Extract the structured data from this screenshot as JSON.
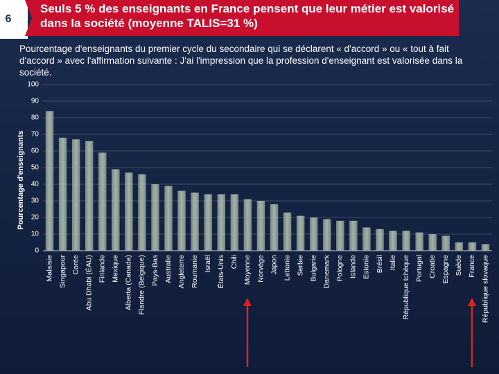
{
  "slide_number": "6",
  "chart_data": {
    "type": "bar",
    "title": "Seuls 5 % des enseignants en France pensent que leur métier est valorisé dans la société (moyenne TALIS=31 %)",
    "subtitle": "Pourcentage d'enseignants du premier cycle du secondaire qui se déclarent « d'accord » ou « tout à fait d'accord » avec l'affirmation suivante : J'ai l'impression que la profession d'enseignant est valorisée dans la société.",
    "y_label": "Pourcentage d'enseignants",
    "categories": [
      "Malaisie",
      "Singapour",
      "Corée",
      "Abu Dhabi (ÉAU)",
      "Finlande",
      "Mexique",
      "Alberta (Canada)",
      "Flandre (Belgique)",
      "Pays-Bas",
      "Australie",
      "Angleterre",
      "Roumanie",
      "Israël",
      "États-Unis",
      "Chili",
      "Moyenne",
      "Norvège",
      "Japon",
      "Lettonie",
      "Serbie",
      "Bulgarie",
      "Danemark",
      "Pologne",
      "Islande",
      "Estonie",
      "Brésil",
      "Italie",
      "République tchèque",
      "Portugal",
      "Croatie",
      "Espagne",
      "Suède",
      "France",
      "République slovaque"
    ],
    "values": [
      84,
      68,
      67,
      66,
      59,
      49,
      47,
      46,
      40,
      39,
      36,
      35,
      34,
      34,
      34,
      31,
      30,
      28,
      23,
      21,
      20,
      19,
      18,
      18,
      14,
      13,
      12,
      12,
      11,
      10,
      9,
      5,
      5,
      4
    ],
    "color": "#a4b2a6",
    "ylim": [
      0,
      100
    ],
    "yticks": [
      0,
      10,
      20,
      30,
      40,
      50,
      60,
      70,
      80,
      90,
      100
    ],
    "grid": true
  }
}
